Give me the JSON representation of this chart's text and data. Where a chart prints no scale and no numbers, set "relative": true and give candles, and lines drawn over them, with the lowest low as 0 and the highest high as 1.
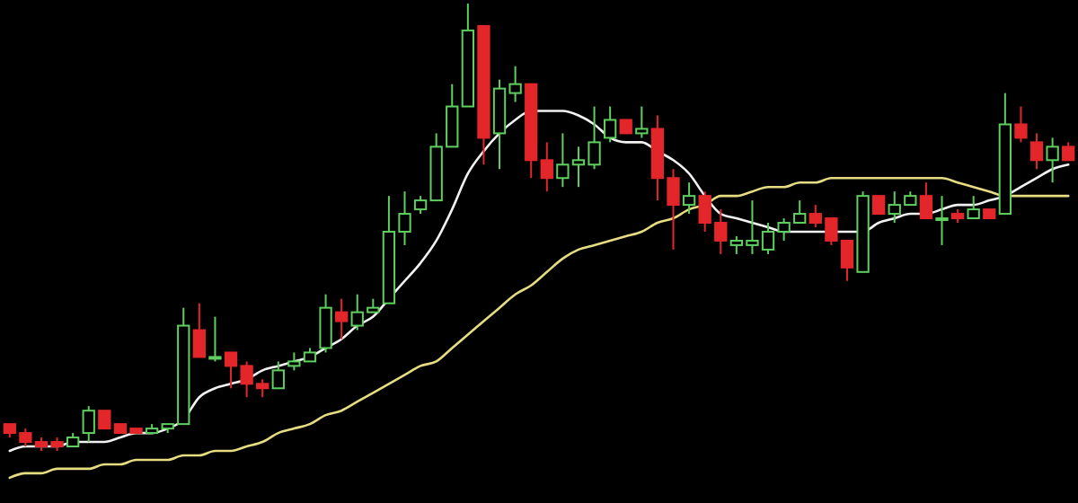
{
  "chart_data": {
    "type": "candlestick",
    "relative": true,
    "categories": [
      null,
      null,
      null,
      null,
      null,
      null,
      null,
      null,
      null,
      null,
      null,
      null,
      null,
      null,
      null,
      null,
      null,
      null,
      null,
      null,
      null,
      null,
      null,
      null,
      null,
      null,
      null,
      null,
      null,
      null,
      null,
      null,
      null,
      null,
      null,
      null,
      null,
      null,
      null,
      null,
      null,
      null,
      null,
      null,
      null,
      null,
      null,
      null,
      null,
      null,
      null,
      null,
      null,
      null,
      null,
      null,
      null,
      null,
      null,
      null,
      null,
      null,
      null,
      null,
      null,
      null,
      null,
      null
    ],
    "ohlc": [
      [
        0.06,
        0.06,
        0.03,
        0.04
      ],
      [
        0.04,
        0.05,
        0.01,
        0.02
      ],
      [
        0.02,
        0.03,
        0.0,
        0.01
      ],
      [
        0.02,
        0.03,
        0.0,
        0.01
      ],
      [
        0.01,
        0.04,
        0.01,
        0.03
      ],
      [
        0.04,
        0.1,
        0.02,
        0.09
      ],
      [
        0.09,
        0.09,
        0.05,
        0.05
      ],
      [
        0.06,
        0.06,
        0.04,
        0.04
      ],
      [
        0.05,
        0.05,
        0.04,
        0.04
      ],
      [
        0.04,
        0.06,
        0.04,
        0.05
      ],
      [
        0.05,
        0.06,
        0.04,
        0.06
      ],
      [
        0.06,
        0.32,
        0.06,
        0.28
      ],
      [
        0.27,
        0.33,
        0.21,
        0.21
      ],
      [
        0.21,
        0.3,
        0.2,
        0.21
      ],
      [
        0.22,
        0.22,
        0.14,
        0.19
      ],
      [
        0.19,
        0.2,
        0.12,
        0.15
      ],
      [
        0.15,
        0.16,
        0.12,
        0.14
      ],
      [
        0.14,
        0.2,
        0.14,
        0.18
      ],
      [
        0.19,
        0.22,
        0.18,
        0.2
      ],
      [
        0.2,
        0.23,
        0.2,
        0.22
      ],
      [
        0.23,
        0.35,
        0.22,
        0.32
      ],
      [
        0.31,
        0.34,
        0.25,
        0.29
      ],
      [
        0.28,
        0.35,
        0.27,
        0.31
      ],
      [
        0.31,
        0.34,
        0.31,
        0.32
      ],
      [
        0.33,
        0.57,
        0.33,
        0.49
      ],
      [
        0.49,
        0.58,
        0.46,
        0.53
      ],
      [
        0.54,
        0.57,
        0.53,
        0.56
      ],
      [
        0.56,
        0.71,
        0.56,
        0.68
      ],
      [
        0.68,
        0.82,
        0.68,
        0.77
      ],
      [
        0.77,
        1.0,
        0.77,
        0.94
      ],
      [
        0.95,
        0.95,
        0.64,
        0.7
      ],
      [
        0.71,
        0.83,
        0.63,
        0.81
      ],
      [
        0.8,
        0.86,
        0.78,
        0.82
      ],
      [
        0.82,
        0.82,
        0.61,
        0.65
      ],
      [
        0.65,
        0.69,
        0.58,
        0.61
      ],
      [
        0.61,
        0.71,
        0.59,
        0.64
      ],
      [
        0.64,
        0.68,
        0.59,
        0.65
      ],
      [
        0.64,
        0.77,
        0.63,
        0.69
      ],
      [
        0.7,
        0.77,
        0.69,
        0.74
      ],
      [
        0.74,
        0.74,
        0.71,
        0.71
      ],
      [
        0.71,
        0.77,
        0.7,
        0.72
      ],
      [
        0.72,
        0.75,
        0.56,
        0.61
      ],
      [
        0.61,
        0.63,
        0.45,
        0.55
      ],
      [
        0.55,
        0.6,
        0.53,
        0.57
      ],
      [
        0.57,
        0.58,
        0.49,
        0.51
      ],
      [
        0.51,
        0.54,
        0.44,
        0.47
      ],
      [
        0.46,
        0.48,
        0.44,
        0.47
      ],
      [
        0.46,
        0.56,
        0.44,
        0.47
      ],
      [
        0.45,
        0.51,
        0.44,
        0.49
      ],
      [
        0.49,
        0.52,
        0.47,
        0.51
      ],
      [
        0.51,
        0.56,
        0.51,
        0.53
      ],
      [
        0.53,
        0.55,
        0.5,
        0.51
      ],
      [
        0.52,
        0.52,
        0.46,
        0.47
      ],
      [
        0.47,
        0.47,
        0.38,
        0.41
      ],
      [
        0.4,
        0.58,
        0.4,
        0.57
      ],
      [
        0.57,
        0.57,
        0.53,
        0.53
      ],
      [
        0.53,
        0.58,
        0.51,
        0.55
      ],
      [
        0.55,
        0.58,
        0.55,
        0.57
      ],
      [
        0.57,
        0.6,
        0.52,
        0.52
      ],
      [
        0.52,
        0.57,
        0.46,
        0.52
      ],
      [
        0.53,
        0.54,
        0.51,
        0.52
      ],
      [
        0.52,
        0.57,
        0.52,
        0.54
      ],
      [
        0.54,
        0.54,
        0.52,
        0.52
      ],
      [
        0.53,
        0.8,
        0.53,
        0.73
      ],
      [
        0.73,
        0.77,
        0.69,
        0.7
      ],
      [
        0.69,
        0.71,
        0.63,
        0.65
      ],
      [
        0.65,
        0.7,
        0.6,
        0.68
      ],
      [
        0.68,
        0.69,
        0.65,
        0.65
      ]
    ],
    "series": [
      {
        "type": "line",
        "color": "#f2f2f2",
        "values": [
          0.0,
          0.01,
          0.01,
          0.01,
          0.02,
          0.02,
          0.02,
          0.03,
          0.04,
          0.04,
          0.05,
          0.07,
          0.12,
          0.14,
          0.15,
          0.16,
          0.18,
          0.19,
          0.2,
          0.21,
          0.23,
          0.25,
          0.28,
          0.3,
          0.34,
          0.38,
          0.42,
          0.47,
          0.54,
          0.62,
          0.67,
          0.71,
          0.74,
          0.76,
          0.76,
          0.76,
          0.75,
          0.73,
          0.7,
          0.69,
          0.69,
          0.67,
          0.65,
          0.62,
          0.57,
          0.53,
          0.52,
          0.51,
          0.5,
          0.49,
          0.49,
          0.49,
          0.49,
          0.49,
          0.49,
          0.51,
          0.52,
          0.53,
          0.53,
          0.54,
          0.55,
          0.55,
          0.56,
          0.57,
          0.59,
          0.61,
          0.63,
          0.64
        ]
      },
      {
        "type": "line",
        "color": "#e6dc82",
        "values": [
          -0.06,
          -0.05,
          -0.05,
          -0.04,
          -0.04,
          -0.04,
          -0.03,
          -0.03,
          -0.02,
          -0.02,
          -0.02,
          -0.01,
          -0.01,
          0.0,
          0.0,
          0.01,
          0.02,
          0.04,
          0.05,
          0.06,
          0.08,
          0.09,
          0.11,
          0.13,
          0.15,
          0.17,
          0.19,
          0.2,
          0.23,
          0.26,
          0.29,
          0.32,
          0.35,
          0.37,
          0.4,
          0.43,
          0.45,
          0.46,
          0.47,
          0.48,
          0.49,
          0.51,
          0.52,
          0.54,
          0.55,
          0.57,
          0.57,
          0.58,
          0.59,
          0.59,
          0.6,
          0.6,
          0.61,
          0.61,
          0.61,
          0.61,
          0.61,
          0.61,
          0.61,
          0.61,
          0.6,
          0.59,
          0.58,
          0.57,
          0.57,
          0.57,
          0.57,
          0.57
        ]
      }
    ]
  }
}
